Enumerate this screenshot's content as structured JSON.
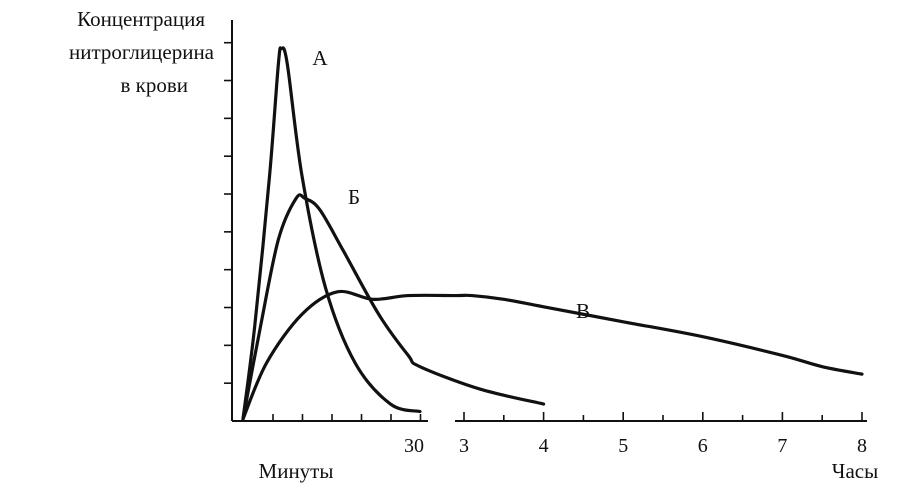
{
  "chart_data": {
    "type": "line",
    "ylabel_lines": [
      "Концентрация",
      "нитроглицерина",
      "в крови"
    ],
    "x_segments": [
      {
        "name": "minutes",
        "label": "Минуты",
        "ticks": [
          30
        ],
        "range": [
          0,
          30
        ]
      },
      {
        "name": "hours",
        "label": "Часы",
        "ticks": [
          3,
          4,
          5,
          6,
          7,
          8
        ],
        "range": [
          2.7,
          8.1
        ]
      }
    ],
    "ylim": [
      0,
      10
    ],
    "y_tick_count": 10,
    "series": [
      {
        "name": "А",
        "points": [
          [
            0,
            0
          ],
          [
            2,
            2.5
          ],
          [
            4.5,
            6.5
          ],
          [
            6,
            9.5
          ],
          [
            6.5,
            9.9
          ],
          [
            7.5,
            9.5
          ],
          [
            10,
            6.5
          ],
          [
            14,
            3.5
          ],
          [
            19,
            1.5
          ],
          [
            25,
            0.4
          ],
          [
            30,
            0.2
          ]
        ]
      },
      {
        "name": "Б",
        "points": [
          [
            0,
            0
          ],
          [
            3,
            2.5
          ],
          [
            6,
            4.8
          ],
          [
            9,
            5.9
          ],
          [
            10.5,
            5.9
          ],
          [
            13,
            5.6
          ],
          [
            17,
            4.5
          ],
          [
            23,
            2.8
          ],
          [
            28,
            1.7
          ],
          [
            30,
            1.4
          ],
          [
            3.2,
            0.8
          ],
          [
            4.0,
            0.4
          ]
        ]
      },
      {
        "name": "В",
        "points": [
          [
            0,
            0
          ],
          [
            4,
            1.5
          ],
          [
            10,
            2.8
          ],
          [
            16,
            3.4
          ],
          [
            22,
            3.2
          ],
          [
            28,
            3.3
          ],
          [
            2.9,
            3.3
          ],
          [
            3.1,
            3.3
          ],
          [
            3.5,
            3.2
          ],
          [
            4.0,
            3.0
          ],
          [
            5.0,
            2.6
          ],
          [
            6.0,
            2.2
          ],
          [
            7.0,
            1.7
          ],
          [
            7.5,
            1.4
          ],
          [
            8.0,
            1.2
          ]
        ]
      }
    ]
  }
}
